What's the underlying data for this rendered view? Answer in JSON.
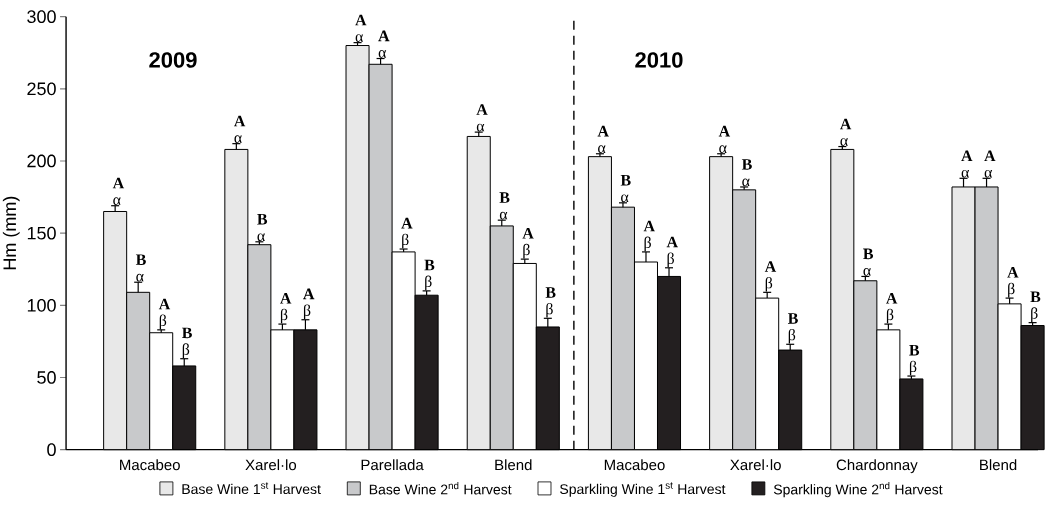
{
  "chart_data": {
    "type": "bar",
    "ylabel": "Hm (mm)",
    "categories": [
      "Macabeo",
      "Xarel·lo",
      "Parellada",
      "Blend",
      "Macabeo",
      "Xarel·lo",
      "Chardonnay",
      "Blend"
    ],
    "series": [
      {
        "name": "Base Wine 1$^{st}$ Harvest",
        "color": "#e8e8e8",
        "values": [
          165,
          208,
          280,
          217,
          203,
          203,
          208,
          182
        ],
        "errors": [
          4,
          4,
          2,
          3,
          2,
          2,
          2,
          6
        ],
        "value_labels": [
          "**A** α",
          "**A** α",
          "**A** α",
          "**A** α",
          "**A** α",
          "**A** α",
          "**A** α",
          "**A** α"
        ]
      },
      {
        "name": "Base Wine 2$^{nd}$ Harvest",
        "color": "#c8c9cb",
        "values": [
          109,
          142,
          267,
          155,
          168,
          180,
          117,
          182
        ],
        "errors": [
          7,
          2,
          4,
          4,
          3,
          2,
          3,
          6
        ],
        "value_labels": [
          "**B** α",
          "**B** α",
          "**A** α",
          "**B** α",
          "**B** α",
          "**B** α",
          "**B** α",
          "**A** α"
        ]
      },
      {
        "name": "Sparkling Wine 1$^{st}$ Harvest",
        "color": "#ffffff",
        "values": [
          81,
          83,
          137,
          129,
          130,
          105,
          83,
          101
        ],
        "errors": [
          2,
          4,
          2,
          3,
          7,
          4,
          4,
          4
        ],
        "value_labels": [
          "**A** β",
          "**A** β",
          "**A** β",
          "**A** β",
          "**A** β",
          "**A** β",
          "**A** β",
          "**A** β"
        ]
      },
      {
        "name": "Sparkling Wine 2$^{nd}$ Harvest",
        "color": "#231f20",
        "values": [
          58,
          83,
          107,
          85,
          120,
          69,
          49,
          86
        ],
        "errors": [
          5,
          7,
          3,
          6,
          6,
          4,
          2,
          2
        ],
        "value_labels": [
          "**B** β",
          "**A** β",
          "**B** β",
          "**B** β",
          "**A** β",
          "**B** β",
          "**B** β",
          "**B** β"
        ]
      }
    ],
    "ylim": [
      0,
      300
    ],
    "yticks": [
      0,
      50,
      100,
      150,
      200,
      250,
      300
    ],
    "annotations": [
      "2009",
      "2010"
    ],
    "grid": false,
    "legend": "bottom"
  }
}
